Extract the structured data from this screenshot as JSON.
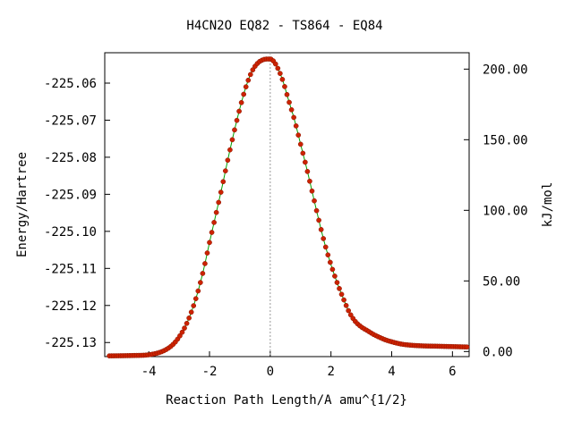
{
  "chart_data": {
    "type": "line",
    "title": "H4CN2O    EQ82 - TS864 - EQ84",
    "xlabel": "Reaction Path Length/A amu^{1/2}",
    "ylabel": "Energy/Hartree",
    "y2label": "kJ/mol",
    "xlim": [
      -5.45,
      6.55
    ],
    "ylim": [
      -225.1338,
      -225.0518
    ],
    "y2lim": [
      -3.6,
      211.6
    ],
    "xticks": [
      -4,
      -2,
      0,
      2,
      4,
      6
    ],
    "yticks": [
      -225.13,
      -225.12,
      -225.11,
      -225.1,
      -225.09,
      -225.08,
      -225.07,
      -225.06
    ],
    "y2ticks": [
      "0.00",
      "50.00",
      "100.00",
      "150.00",
      "200.00"
    ],
    "grid": false,
    "ts_marker_x": 0.0,
    "colors": {
      "line": "#00a000",
      "points": "#cc2200",
      "ts_line": "#999999"
    },
    "series": [
      {
        "x": [
          -5.3,
          -4.5,
          -4.0,
          -3.5,
          -3.2,
          -3.0,
          -2.8,
          -2.6,
          -2.4,
          -2.2,
          -2.0,
          -1.8,
          -1.6,
          -1.4,
          -1.2,
          -1.0,
          -0.8,
          -0.6,
          -0.4,
          -0.2,
          -0.1,
          0.0,
          0.1,
          0.2,
          0.4,
          0.6,
          0.8,
          1.0,
          1.2,
          1.4,
          1.6,
          1.8,
          2.0,
          2.2,
          2.4,
          2.6,
          2.8,
          3.0,
          3.2,
          3.4,
          3.6,
          3.8,
          4.0,
          4.3,
          4.6,
          5.0,
          5.5,
          6.0,
          6.5
        ],
        "y": [
          -225.1336,
          -225.1335,
          -225.1333,
          -225.1322,
          -225.1305,
          -225.1285,
          -225.1257,
          -225.1218,
          -225.1168,
          -225.1105,
          -225.103,
          -225.0958,
          -225.0885,
          -225.0808,
          -225.0735,
          -225.0668,
          -225.061,
          -225.0568,
          -225.0545,
          -225.0536,
          -225.0535,
          -225.0535,
          -225.054,
          -225.0552,
          -225.059,
          -225.0645,
          -225.07,
          -225.0765,
          -225.083,
          -225.09,
          -225.097,
          -225.1035,
          -225.109,
          -225.1138,
          -225.118,
          -225.1218,
          -225.1243,
          -225.1258,
          -225.1268,
          -225.1278,
          -225.1286,
          -225.1293,
          -225.1298,
          -225.1304,
          -225.1307,
          -225.1309,
          -225.131,
          -225.1311,
          -225.1312
        ]
      }
    ]
  }
}
